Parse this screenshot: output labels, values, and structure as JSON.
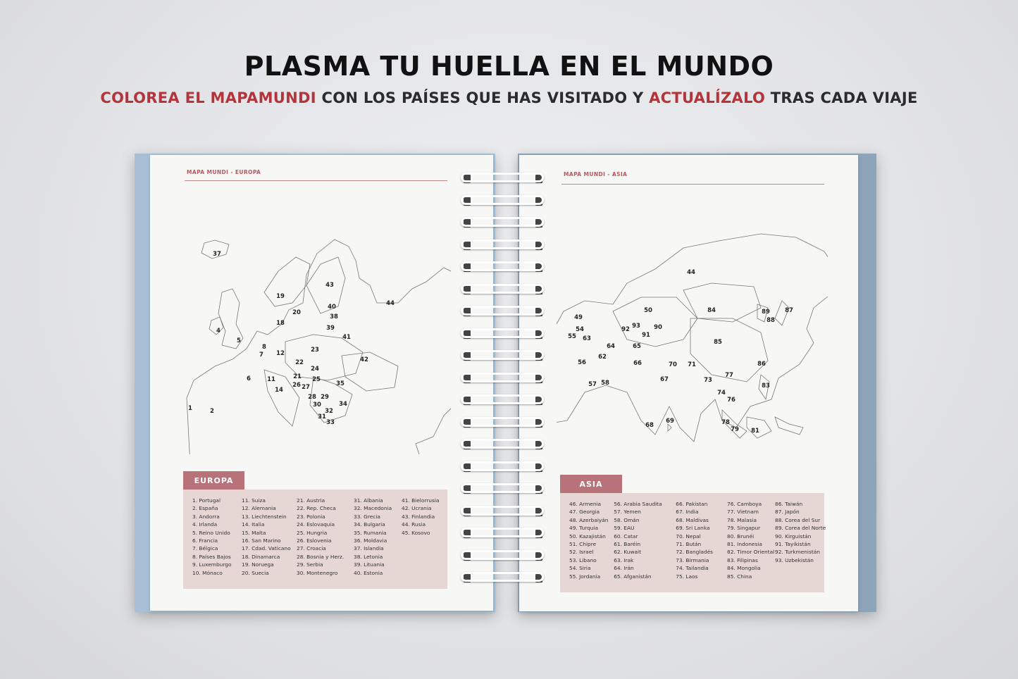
{
  "header": {
    "title": "PLASMA TU HUELLA EN EL MUNDO",
    "subtitle_parts": [
      "COLOREA EL MAPAMUNDI",
      " CON LOS PAÍSES QUE HAS VISITADO Y ",
      "ACTUALÍZALO",
      " TRAS CADA VIAJE"
    ]
  },
  "colors": {
    "accent_red": "#b3353b",
    "tag": "#b8737a",
    "list_bg": "#e6d7d5",
    "cover": "#a8c0d5"
  },
  "left_page": {
    "header": "MAPA MUNDI - EUROPA",
    "tag": "EUROPA",
    "map_labels": [
      "37",
      "19",
      "20",
      "43",
      "40",
      "38",
      "39",
      "41",
      "44",
      "4",
      "5",
      "18",
      "8",
      "7",
      "12",
      "23",
      "22",
      "24",
      "21",
      "25",
      "42",
      "11",
      "6",
      "26",
      "27",
      "14",
      "35",
      "28",
      "29",
      "30",
      "34",
      "32",
      "31",
      "33",
      "1",
      "2"
    ],
    "columns": [
      [
        "1. Portugal",
        "2. España",
        "3. Andorra",
        "4. Irlanda",
        "5. Reino Unido",
        "6. Francia",
        "7. Bélgica",
        "8. Países Bajos",
        "9. Luxemburgo",
        "10. Mónaco"
      ],
      [
        "11. Suiza",
        "12. Alemania",
        "13. Liechtenstein",
        "14. Italia",
        "15. Malta",
        "16. San Marino",
        "17. Cdad. Vaticano",
        "18. Dinamarca",
        "19. Noruega",
        "20. Suecia"
      ],
      [
        "21. Austria",
        "22. Rep. Checa",
        "23. Polonia",
        "24. Eslovaquia",
        "25. Hungria",
        "26. Eslovenia",
        "27. Croacia",
        "28. Bosnia y Herz.",
        "29. Serbia",
        "30. Montenegro"
      ],
      [
        "31. Albania",
        "32. Macedonia",
        "33. Grecia",
        "34. Bulgaria",
        "35. Rumania",
        "36. Moldavia",
        "37. Islandia",
        "38. Letonia",
        "39. Lituania",
        "40. Estonia"
      ],
      [
        "41. Bielorrusia",
        "42. Ucrania",
        "43. Finlandia",
        "44. Rusia",
        "45. Kosovo"
      ]
    ]
  },
  "right_page": {
    "header": "MAPA MUNDI - ASIA",
    "tag": "ASIA",
    "map_labels": [
      "44",
      "50",
      "84",
      "89",
      "87",
      "88",
      "49",
      "54",
      "92",
      "93",
      "90",
      "91",
      "63",
      "64",
      "65",
      "85",
      "56",
      "66",
      "70",
      "71",
      "86",
      "57",
      "58",
      "67",
      "73",
      "77",
      "83",
      "74",
      "76",
      "68",
      "69",
      "78",
      "79",
      "81",
      "62",
      "55"
    ],
    "columns": [
      [
        "46. Armenia",
        "47. Georgia",
        "48. Azerbaiyán",
        "49. Turquia",
        "50. Kazajistán",
        "51. Chipre",
        "52. Israel",
        "53. Libano",
        "54. Siria",
        "55. Jordania"
      ],
      [
        "56. Arabia Saudita",
        "57. Yemen",
        "58. Omán",
        "59. EAU",
        "60. Catar",
        "61. Baréin",
        "62. Kuwait",
        "63. Irak",
        "64. Irán",
        "65. Afganistán"
      ],
      [
        "66. Pakistan",
        "67. India",
        "68. Maldivas",
        "69. Sri Lanka",
        "70. Nepal",
        "71. Bután",
        "72. Bangladés",
        "73. Birmania",
        "74. Tailandia",
        "75. Laos"
      ],
      [
        "76. Camboya",
        "77. Vietnam",
        "78. Malasia",
        "79. Singapur",
        "80. Brunéi",
        "81. Indonesia",
        "82. Timor Oriental",
        "83. Filipinas",
        "84. Mongolia",
        "85. China"
      ],
      [
        "86. Taiwán",
        "87. Japón",
        "88. Corea del Sur",
        "89. Corea del Norte",
        "90. Kirguistán",
        "91. Tayikistán",
        "92. Turkmenistán",
        "93. Uzbekistán"
      ]
    ]
  }
}
